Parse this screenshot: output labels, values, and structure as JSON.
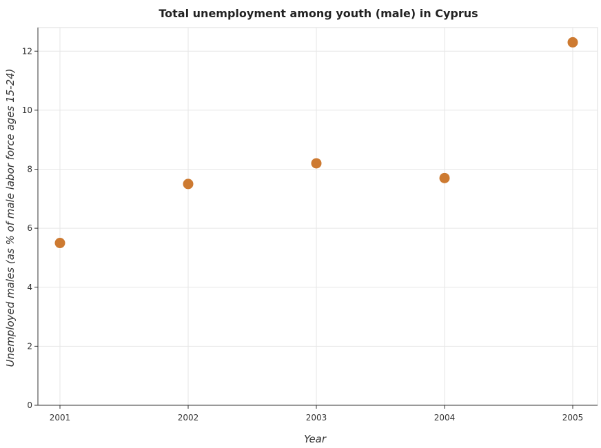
{
  "chart_data": {
    "type": "scatter",
    "title": "Total unemployment among youth (male) in Cyprus",
    "xlabel": "Year",
    "ylabel": "Unemployed males (as % of male labor force ages 15-24)",
    "categories": [
      "2001",
      "2002",
      "2003",
      "2004",
      "2005"
    ],
    "values": [
      5.5,
      7.5,
      8.2,
      7.7,
      12.3
    ],
    "ylim": [
      0,
      12.8
    ],
    "yticks": [
      0,
      2,
      4,
      6,
      8,
      10,
      12
    ],
    "grid": true,
    "marker_color": "#cd7a31"
  }
}
